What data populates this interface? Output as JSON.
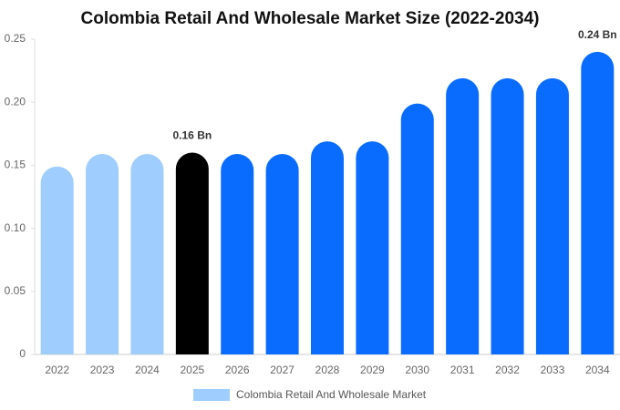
{
  "chart_data": {
    "type": "bar",
    "title": "Colombia Retail And Wholesale Market Size (2022-2034)",
    "categories": [
      "2022",
      "2023",
      "2024",
      "2025",
      "2026",
      "2027",
      "2028",
      "2029",
      "2030",
      "2031",
      "2032",
      "2033",
      "2034"
    ],
    "series": [
      {
        "name": "Colombia Retail And Wholesale Market",
        "color": "#9fcdfd",
        "values": [
          0.149,
          0.159,
          0.159,
          0.16,
          0.159,
          0.159,
          0.169,
          0.169,
          0.199,
          0.219,
          0.219,
          0.219,
          0.24
        ],
        "value_labels": [
          null,
          null,
          null,
          "0.16 Bn",
          null,
          null,
          null,
          null,
          null,
          null,
          null,
          null,
          "0.24 Bn"
        ],
        "colors": [
          "#9fcdfd",
          "#9fcdfd",
          "#9fcdfd",
          "#000000",
          "#0a6cff",
          "#0a6cff",
          "#0a6cff",
          "#0a6cff",
          "#0a6cff",
          "#0a6cff",
          "#0a6cff",
          "#0a6cff",
          "#0a6cff"
        ]
      }
    ],
    "ylim": [
      0,
      0.25
    ],
    "yticks": [
      0,
      0.05,
      {
        "value": 0.1,
        "label": "0.10"
      },
      0.15,
      {
        "value": 0.2,
        "label": "0.20"
      },
      0.25
    ],
    "grid": false
  }
}
